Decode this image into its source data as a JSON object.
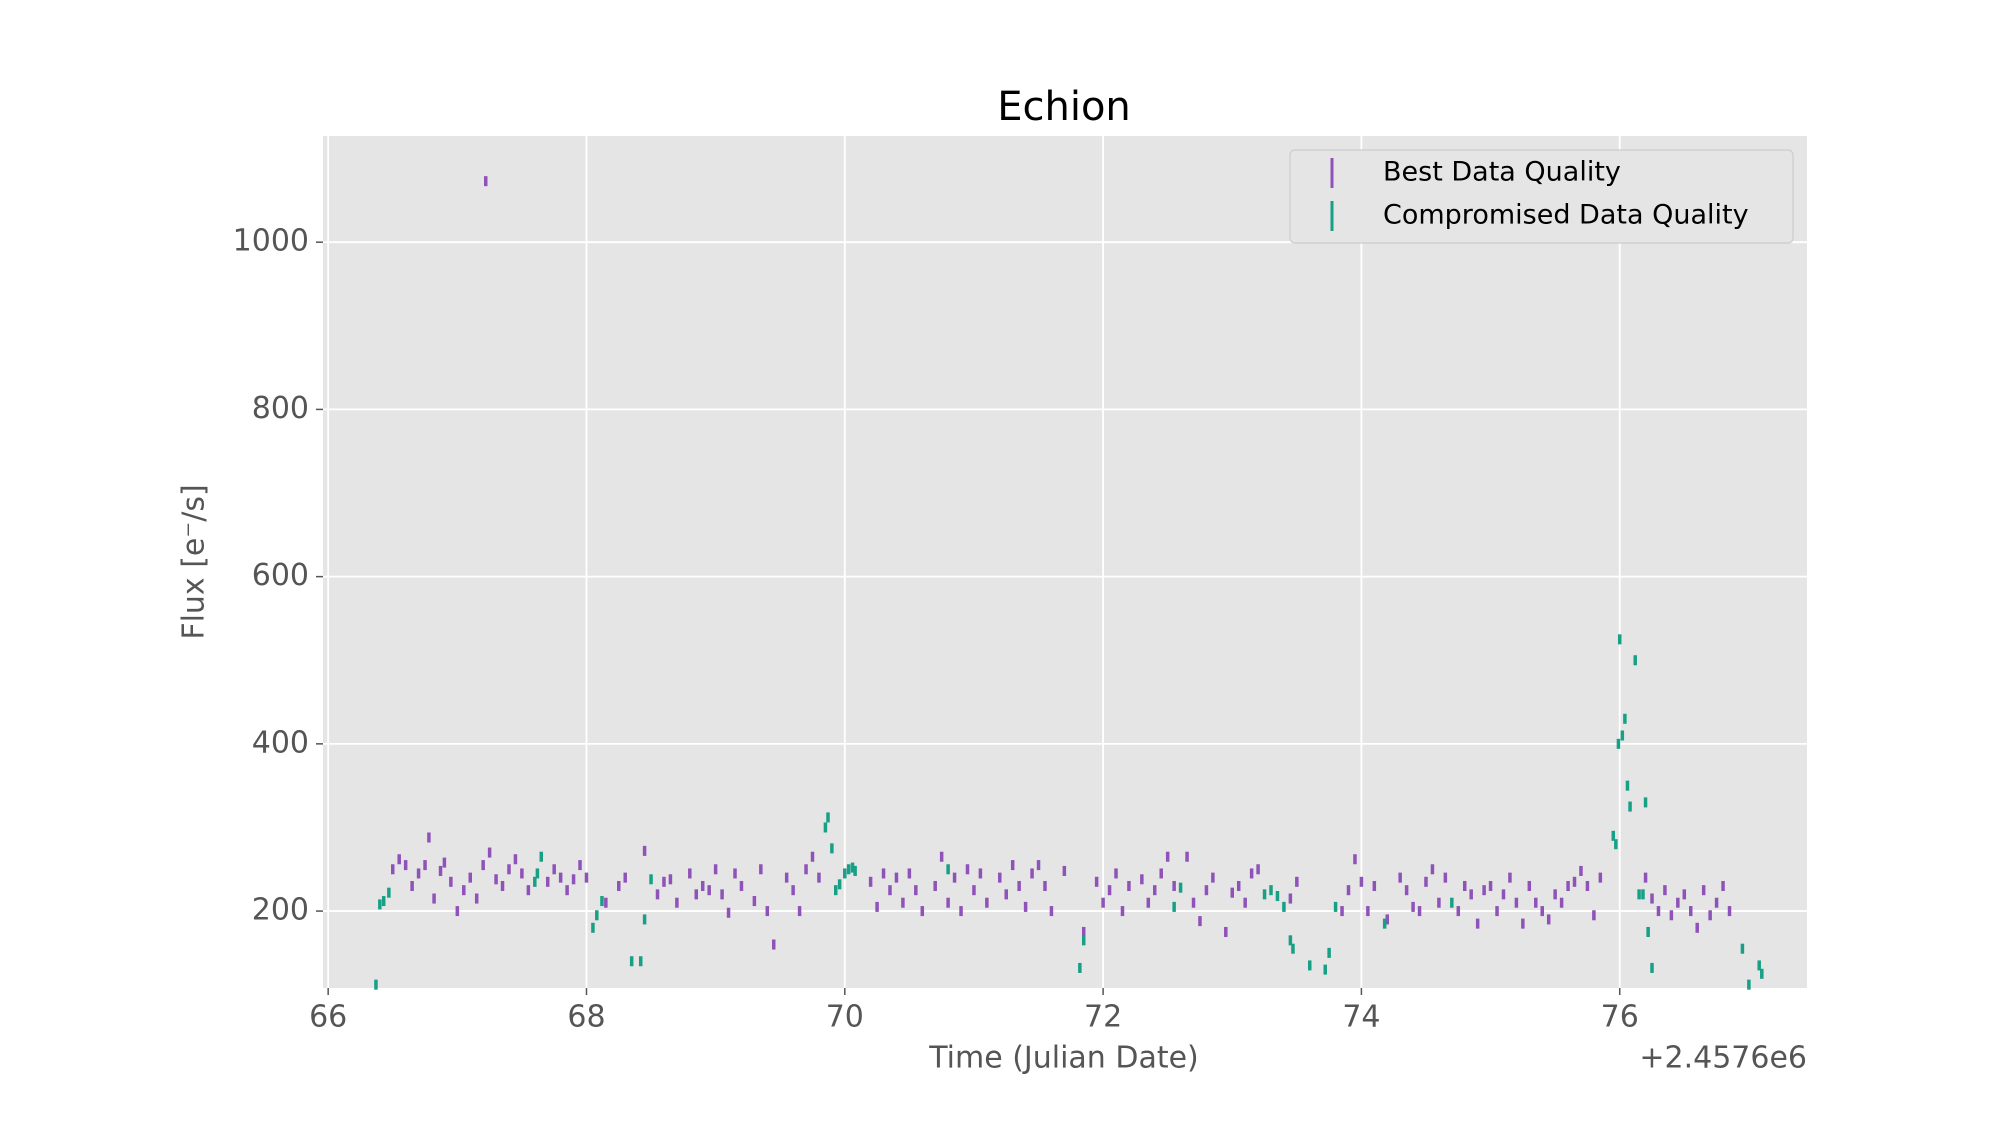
{
  "chart_data": {
    "type": "errorbar",
    "title": "Echion",
    "x_label": "Time (Julian Date)",
    "y_label": "Flux [e⁻/s]",
    "x_offset_label": "+2.4576e6",
    "xlim": [
      65.96,
      77.45
    ],
    "xticks": [
      66,
      68,
      70,
      72,
      74,
      76
    ],
    "ylim": [
      108,
      1127
    ],
    "yticks": [
      200,
      400,
      600,
      800,
      1000
    ],
    "grid": true,
    "legend": "upper right",
    "series": [
      {
        "name": "Best Data Quality",
        "color": "#8e52b8",
        "yerr": 6,
        "x": [
          66.5,
          66.55,
          66.6,
          66.65,
          66.7,
          66.75,
          66.78,
          66.82,
          66.87,
          66.9,
          66.95,
          67.0,
          67.05,
          67.1,
          67.15,
          67.2,
          67.22,
          67.25,
          67.3,
          67.35,
          67.4,
          67.45,
          67.5,
          67.55,
          67.7,
          67.75,
          67.8,
          67.85,
          67.9,
          67.95,
          68.0,
          68.15,
          68.25,
          68.3,
          68.45,
          68.55,
          68.6,
          68.65,
          68.7,
          68.8,
          68.85,
          68.9,
          68.95,
          69.0,
          69.05,
          69.1,
          69.15,
          69.2,
          69.3,
          69.35,
          69.4,
          69.45,
          69.55,
          69.6,
          69.65,
          69.7,
          69.75,
          69.8,
          70.2,
          70.25,
          70.3,
          70.35,
          70.4,
          70.45,
          70.5,
          70.55,
          70.6,
          70.7,
          70.75,
          70.8,
          70.85,
          70.9,
          70.95,
          71.0,
          71.05,
          71.1,
          71.2,
          71.25,
          71.3,
          71.35,
          71.4,
          71.45,
          71.5,
          71.55,
          71.6,
          71.7,
          71.85,
          71.95,
          72.0,
          72.05,
          72.1,
          72.15,
          72.2,
          72.3,
          72.35,
          72.4,
          72.45,
          72.5,
          72.55,
          72.65,
          72.7,
          72.75,
          72.8,
          72.85,
          72.95,
          73.0,
          73.05,
          73.1,
          73.15,
          73.2,
          73.45,
          73.5,
          73.85,
          73.9,
          73.95,
          74.0,
          74.05,
          74.1,
          74.2,
          74.3,
          74.35,
          74.4,
          74.45,
          74.5,
          74.55,
          74.6,
          74.65,
          74.75,
          74.8,
          74.85,
          74.9,
          74.95,
          75.0,
          75.05,
          75.1,
          75.15,
          75.2,
          75.25,
          75.3,
          75.35,
          75.4,
          75.45,
          75.5,
          75.55,
          75.6,
          75.65,
          75.7,
          75.75,
          75.8,
          75.85,
          76.2,
          76.25,
          76.3,
          76.35,
          76.4,
          76.45,
          76.5,
          76.55,
          76.6,
          76.65,
          76.7,
          76.75,
          76.8,
          76.85
        ],
        "values": [
          250,
          262,
          255,
          230,
          245,
          255,
          288,
          215,
          248,
          258,
          235,
          200,
          225,
          240,
          215,
          255,
          1073,
          270,
          238,
          230,
          250,
          262,
          245,
          225,
          235,
          250,
          240,
          225,
          238,
          255,
          240,
          210,
          230,
          240,
          272,
          220,
          235,
          238,
          210,
          245,
          220,
          230,
          225,
          250,
          220,
          198,
          245,
          230,
          212,
          250,
          200,
          160,
          240,
          225,
          200,
          250,
          265,
          240,
          235,
          205,
          245,
          225,
          240,
          210,
          245,
          225,
          200,
          230,
          265,
          210,
          240,
          200,
          250,
          225,
          245,
          210,
          240,
          220,
          255,
          230,
          205,
          245,
          255,
          230,
          200,
          248,
          175,
          235,
          210,
          225,
          245,
          200,
          230,
          238,
          210,
          225,
          245,
          265,
          230,
          265,
          210,
          188,
          225,
          240,
          175,
          222,
          230,
          210,
          245,
          250,
          215,
          235,
          200,
          225,
          262,
          235,
          200,
          230,
          190,
          240,
          225,
          205,
          200,
          235,
          250,
          210,
          240,
          200,
          230,
          220,
          185,
          225,
          230,
          200,
          220,
          240,
          210,
          185,
          230,
          210,
          200,
          190,
          220,
          210,
          230,
          235,
          248,
          230,
          195,
          240,
          240,
          215,
          200,
          225,
          195,
          210,
          220,
          200,
          180,
          225,
          195,
          210,
          230,
          200
        ]
      },
      {
        "name": "Compromised Data Quality",
        "color": "#17a085",
        "yerr": 6,
        "x": [
          66.37,
          66.4,
          66.43,
          66.47,
          67.6,
          67.62,
          67.65,
          68.05,
          68.08,
          68.12,
          68.35,
          68.42,
          68.45,
          68.5,
          69.85,
          69.87,
          69.9,
          69.93,
          69.96,
          70.0,
          70.03,
          70.06,
          70.08,
          70.8,
          71.82,
          71.85,
          72.55,
          72.6,
          73.25,
          73.3,
          73.35,
          73.4,
          73.45,
          73.47,
          73.6,
          73.72,
          73.75,
          73.8,
          74.18,
          74.7,
          75.95,
          75.97,
          75.99,
          76.0,
          76.02,
          76.04,
          76.06,
          76.08,
          76.12,
          76.15,
          76.18,
          76.2,
          76.22,
          76.25,
          76.95,
          77.0,
          77.08,
          77.1
        ],
        "values": [
          112,
          208,
          212,
          222,
          235,
          245,
          265,
          180,
          195,
          212,
          140,
          140,
          190,
          238,
          300,
          312,
          275,
          225,
          232,
          245,
          250,
          252,
          248,
          250,
          132,
          165,
          205,
          228,
          220,
          225,
          218,
          205,
          165,
          155,
          135,
          130,
          150,
          205,
          185,
          210,
          290,
          280,
          400,
          525,
          410,
          430,
          350,
          325,
          500,
          220,
          220,
          330,
          175,
          132,
          155,
          112,
          135,
          125
        ]
      }
    ]
  }
}
